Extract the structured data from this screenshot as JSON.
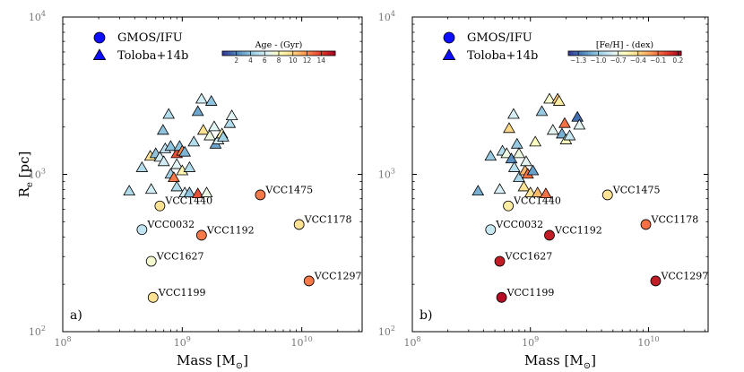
{
  "chart_data": [
    {
      "type": "scatter",
      "panel_label": "a)",
      "xlabel": "Mass [M",
      "xlabel_sub": "⊙",
      "ylabel": "R",
      "ylabel_sub": "e",
      "ylabel_unit": " [pc]",
      "xscale": "log",
      "yscale": "log",
      "xlim": [
        100000000.0,
        32000000000.0
      ],
      "ylim": [
        100,
        10000
      ],
      "x_ticks": [
        {
          "value": 100000000.0,
          "base": "10",
          "exp": "8"
        },
        {
          "value": 1000000000.0,
          "base": "10",
          "exp": "9"
        },
        {
          "value": 10000000000.0,
          "base": "10",
          "exp": "10"
        }
      ],
      "y_ticks": [
        {
          "value": 100,
          "base": "10",
          "exp": "2"
        },
        {
          "value": 1000,
          "base": "10",
          "exp": "3"
        },
        {
          "value": 10000,
          "base": "10",
          "exp": "4"
        }
      ],
      "legend": [
        {
          "marker": "circle",
          "label": "GMOS/IFU"
        },
        {
          "marker": "triangle",
          "label": "Toloba+14b"
        }
      ],
      "colorbar": {
        "title": "Age - (Gyr)",
        "min": 0,
        "max": 16,
        "ticks": [
          2,
          4,
          6,
          8,
          10,
          12,
          14
        ],
        "tick_labels": [
          "2",
          "4",
          "6",
          "8",
          "10",
          "12",
          "14"
        ]
      },
      "series": [
        {
          "name": "GMOS/IFU",
          "marker": "circle",
          "points": [
            {
              "label": "VCC1440",
              "mass": 650000000.0,
              "re": 630,
              "c": 9.5
            },
            {
              "label": "VCC0032",
              "mass": 460000000.0,
              "re": 445,
              "c": 5.5
            },
            {
              "label": "VCC1627",
              "mass": 550000000.0,
              "re": 280,
              "c": 7.5
            },
            {
              "label": "VCC1199",
              "mass": 570000000.0,
              "re": 165,
              "c": 9.5
            },
            {
              "label": "VCC1192",
              "mass": 1450000000.0,
              "re": 410,
              "c": 12.5
            },
            {
              "label": "VCC1475",
              "mass": 4500000000.0,
              "re": 740,
              "c": 12.5
            },
            {
              "label": "VCC1178",
              "mass": 9500000000.0,
              "re": 480,
              "c": 9.5
            },
            {
              "label": "VCC1297",
              "mass": 11500000000.0,
              "re": 210,
              "c": 12.5
            }
          ]
        },
        {
          "name": "Toloba+14b",
          "marker": "triangle",
          "points": [
            {
              "mass": 360000000.0,
              "re": 780,
              "c": 5
            },
            {
              "mass": 460000000.0,
              "re": 1100,
              "c": 5
            },
            {
              "mass": 550000000.0,
              "re": 800,
              "c": 6
            },
            {
              "mass": 540000000.0,
              "re": 1300,
              "c": 9.5
            },
            {
              "mass": 600000000.0,
              "re": 1350,
              "c": 4
            },
            {
              "mass": 650000000.0,
              "re": 1280,
              "c": 6
            },
            {
              "mass": 690000000.0,
              "re": 1900,
              "c": 4
            },
            {
              "mass": 720000000.0,
              "re": 1450,
              "c": 5.5
            },
            {
              "mass": 700000000.0,
              "re": 1200,
              "c": 6
            },
            {
              "mass": 770000000.0,
              "re": 2400,
              "c": 5
            },
            {
              "mass": 800000000.0,
              "re": 1500,
              "c": 4
            },
            {
              "mass": 800000000.0,
              "re": 1000,
              "c": 4.5
            },
            {
              "mass": 850000000.0,
              "re": 950,
              "c": 12.5
            },
            {
              "mass": 900000000.0,
              "re": 1350,
              "c": 13.5
            },
            {
              "mass": 900000000.0,
              "re": 1150,
              "c": 6.5
            },
            {
              "mass": 950000000.0,
              "re": 1500,
              "c": 4
            },
            {
              "mass": 900000000.0,
              "re": 830,
              "c": 5
            },
            {
              "mass": 1000000000.0,
              "re": 1400,
              "c": 12
            },
            {
              "mass": 1000000000.0,
              "re": 1050,
              "c": 8.5
            },
            {
              "mass": 1050000000.0,
              "re": 1380,
              "c": 3.5
            },
            {
              "mass": 1050000000.0,
              "re": 760,
              "c": 6
            },
            {
              "mass": 1150000000.0,
              "re": 1100,
              "c": 5
            },
            {
              "mass": 1150000000.0,
              "re": 760,
              "c": 4
            },
            {
              "mass": 1250000000.0,
              "re": 1600,
              "c": 5
            },
            {
              "mass": 1350000000.0,
              "re": 2500,
              "c": 3
            },
            {
              "mass": 1350000000.0,
              "re": 750,
              "c": 13.5
            },
            {
              "mass": 1450000000.0,
              "re": 3000,
              "c": 6
            },
            {
              "mass": 1500000000.0,
              "re": 1900,
              "c": 9.5
            },
            {
              "mass": 1600000000.0,
              "re": 760,
              "c": 7
            },
            {
              "mass": 1700000000.0,
              "re": 1750,
              "c": 7
            },
            {
              "mass": 1750000000.0,
              "re": 2900,
              "c": 4
            },
            {
              "mass": 1850000000.0,
              "re": 2000,
              "c": 6.5
            },
            {
              "mass": 1900000000.0,
              "re": 1550,
              "c": 3
            },
            {
              "mass": 2000000000.0,
              "re": 1650,
              "c": 6
            },
            {
              "mass": 2150000000.0,
              "re": 1800,
              "c": 8.5
            },
            {
              "mass": 2200000000.0,
              "re": 1720,
              "c": 4.5
            },
            {
              "mass": 2500000000.0,
              "re": 2100,
              "c": 5
            },
            {
              "mass": 2600000000.0,
              "re": 2350,
              "c": 6.5
            }
          ]
        }
      ]
    },
    {
      "type": "scatter",
      "panel_label": "b)",
      "xlabel": "Mass [M",
      "xlabel_sub": "⊙",
      "ylabel": "",
      "xscale": "log",
      "yscale": "log",
      "xlim": [
        100000000.0,
        32000000000.0
      ],
      "ylim": [
        100,
        10000
      ],
      "x_ticks": [
        {
          "value": 100000000.0,
          "base": "10",
          "exp": "8"
        },
        {
          "value": 1000000000.0,
          "base": "10",
          "exp": "9"
        },
        {
          "value": 10000000000.0,
          "base": "10",
          "exp": "10"
        }
      ],
      "y_ticks": [
        {
          "value": 100,
          "base": "10",
          "exp": "2"
        },
        {
          "value": 1000,
          "base": "10",
          "exp": "3"
        },
        {
          "value": 10000,
          "base": "10",
          "exp": "4"
        }
      ],
      "legend": [
        {
          "marker": "circle",
          "label": "GMOS/IFU"
        },
        {
          "marker": "triangle",
          "label": "Toloba+14b"
        }
      ],
      "colorbar": {
        "title": "[Fe/H] - (dex)",
        "min": -1.45,
        "max": 0.25,
        "ticks": [
          -1.3,
          -1.0,
          -0.7,
          -0.4,
          -0.1,
          0.2
        ],
        "tick_labels": [
          "−1.3",
          "−1.0",
          "−0.7",
          "−0.4",
          "−0.1",
          "0.2"
        ]
      },
      "series": [
        {
          "name": "GMOS/IFU",
          "marker": "circle",
          "points": [
            {
              "label": "VCC1440",
              "mass": 650000000.0,
              "re": 630,
              "c": -0.5
            },
            {
              "label": "VCC0032",
              "mass": 460000000.0,
              "re": 445,
              "c": -0.85
            },
            {
              "label": "VCC1627",
              "mass": 550000000.0,
              "re": 280,
              "c": 0.15
            },
            {
              "label": "VCC1199",
              "mass": 570000000.0,
              "re": 165,
              "c": 0.2
            },
            {
              "label": "VCC1192",
              "mass": 1450000000.0,
              "re": 410,
              "c": 0.15
            },
            {
              "label": "VCC1475",
              "mass": 4500000000.0,
              "re": 740,
              "c": -0.45
            },
            {
              "label": "VCC1178",
              "mass": 9500000000.0,
              "re": 480,
              "c": -0.1
            },
            {
              "label": "VCC1297",
              "mass": 11500000000.0,
              "re": 210,
              "c": 0.15
            }
          ]
        },
        {
          "name": "Toloba+14b",
          "marker": "triangle",
          "points": [
            {
              "mass": 360000000.0,
              "re": 780,
              "c": -1.1
            },
            {
              "mass": 460000000.0,
              "re": 1300,
              "c": -1.0
            },
            {
              "mass": 550000000.0,
              "re": 800,
              "c": -0.8
            },
            {
              "mass": 580000000.0,
              "re": 1400,
              "c": -0.9
            },
            {
              "mass": 630000000.0,
              "re": 1350,
              "c": -0.7
            },
            {
              "mass": 660000000.0,
              "re": 1950,
              "c": -0.4
            },
            {
              "mass": 690000000.0,
              "re": 1250,
              "c": -1.2
            },
            {
              "mass": 720000000.0,
              "re": 2400,
              "c": -0.8
            },
            {
              "mass": 730000000.0,
              "re": 1100,
              "c": -0.9
            },
            {
              "mass": 770000000.0,
              "re": 1550,
              "c": -1.0
            },
            {
              "mass": 800000000.0,
              "re": 950,
              "c": -0.95
            },
            {
              "mass": 800000000.0,
              "re": 1350,
              "c": -0.7
            },
            {
              "mass": 880000000.0,
              "re": 830,
              "c": -0.45
            },
            {
              "mass": 900000000.0,
              "re": 1050,
              "c": -0.3
            },
            {
              "mass": 920000000.0,
              "re": 1200,
              "c": -0.75
            },
            {
              "mass": 950000000.0,
              "re": 1000,
              "c": -0.1
            },
            {
              "mass": 1000000000.0,
              "re": 760,
              "c": -0.45
            },
            {
              "mass": 1050000000.0,
              "re": 1050,
              "c": -1.15
            },
            {
              "mass": 1100000000.0,
              "re": 1600,
              "c": -0.6
            },
            {
              "mass": 1150000000.0,
              "re": 760,
              "c": -0.3
            },
            {
              "mass": 1250000000.0,
              "re": 2500,
              "c": -1.0
            },
            {
              "mass": 1350000000.0,
              "re": 750,
              "c": -0.1
            },
            {
              "mass": 1450000000.0,
              "re": 3000,
              "c": -0.65
            },
            {
              "mass": 1550000000.0,
              "re": 1900,
              "c": -0.75
            },
            {
              "mass": 1700000000.0,
              "re": 3000,
              "c": -0.35
            },
            {
              "mass": 1750000000.0,
              "re": 2900,
              "c": -0.5
            },
            {
              "mass": 1850000000.0,
              "re": 1800,
              "c": -1.1
            },
            {
              "mass": 1950000000.0,
              "re": 2100,
              "c": -0.1
            },
            {
              "mass": 2000000000.0,
              "re": 1650,
              "c": -0.6
            },
            {
              "mass": 2150000000.0,
              "re": 1750,
              "c": -0.85
            },
            {
              "mass": 2500000000.0,
              "re": 2300,
              "c": -1.3
            },
            {
              "mass": 2600000000.0,
              "re": 2050,
              "c": -0.75
            }
          ]
        }
      ]
    }
  ],
  "colors": {
    "cmap_stops": [
      "#313695",
      "#4575b4",
      "#74add1",
      "#abd9e9",
      "#e0f3f8",
      "#ffffbf",
      "#fee090",
      "#fdae61",
      "#f46d43",
      "#d73027",
      "#a50026"
    ],
    "legend_marker": "#0d0dff",
    "frame": "#000000",
    "tick_label": "#777777"
  }
}
